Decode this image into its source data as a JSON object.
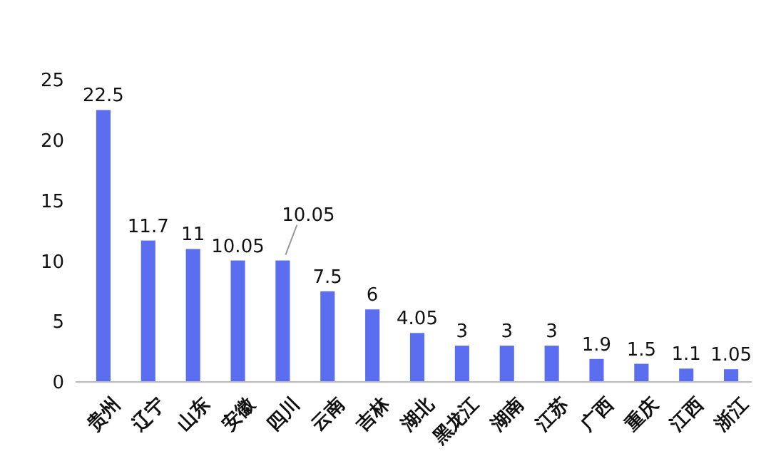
{
  "chart_data": {
    "type": "bar",
    "categories": [
      "贵州",
      "辽宁",
      "山东",
      "安徽",
      "四川",
      "云南",
      "吉林",
      "湖北",
      "黑龙江",
      "湖南",
      "江苏",
      "广西",
      "重庆",
      "江西",
      "浙江"
    ],
    "values": [
      22.5,
      11.7,
      11,
      10.05,
      10.05,
      7.5,
      6,
      4.05,
      3,
      3,
      3,
      1.9,
      1.5,
      1.1,
      1.05
    ],
    "color": "#5b6ef0",
    "ylim": [
      0,
      25
    ],
    "yticks": [
      0,
      5,
      10,
      15,
      20,
      25
    ],
    "grid": false,
    "data_labels": true
  }
}
